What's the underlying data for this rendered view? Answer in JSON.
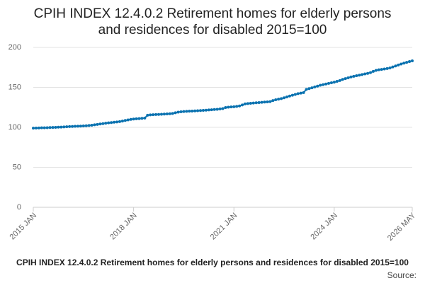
{
  "chart_data": {
    "type": "line",
    "title": [
      "CPIH INDEX 12.4.0.2 Retirement homes for elderly persons",
      "and residences for disabled 2015=100"
    ],
    "caption": "CPIH INDEX 12.4.0.2 Retirement homes for elderly persons and residences for disabled 2015=100",
    "source": "Source:",
    "categories": [
      "2015 JAN",
      null,
      null,
      null,
      null,
      null,
      null,
      null,
      null,
      null,
      null,
      null,
      null,
      null,
      null,
      null,
      null,
      null,
      null,
      null,
      null,
      null,
      null,
      null,
      null,
      null,
      null,
      null,
      null,
      null,
      null,
      null,
      null,
      null,
      null,
      null,
      "2018 JAN",
      null,
      null,
      null,
      null,
      null,
      null,
      null,
      null,
      null,
      null,
      null,
      null,
      null,
      null,
      null,
      null,
      null,
      null,
      null,
      null,
      null,
      null,
      null,
      null,
      null,
      null,
      null,
      null,
      null,
      null,
      null,
      null,
      null,
      null,
      null,
      "2021 JAN",
      null,
      null,
      null,
      null,
      null,
      null,
      null,
      null,
      null,
      null,
      null,
      null,
      null,
      null,
      null,
      null,
      null,
      null,
      null,
      null,
      null,
      null,
      null,
      null,
      null,
      null,
      null,
      null,
      null,
      null,
      null,
      null,
      null,
      null,
      null,
      "2024 JAN",
      null,
      null,
      null,
      null,
      null,
      null,
      null,
      null,
      null,
      null,
      null,
      null,
      null,
      null,
      null,
      null,
      null,
      null,
      null,
      null,
      null,
      null,
      null,
      null,
      null,
      null,
      null,
      "2026 MAY"
    ],
    "series": [
      {
        "name": "CPIH INDEX 12.4.0.2",
        "color": "#0a72b0",
        "values": [
          99,
          99.1,
          99.2,
          99.4,
          99.5,
          99.6,
          99.8,
          99.9,
          100,
          100.2,
          100.3,
          100.5,
          100.8,
          101,
          101.1,
          101.3,
          101.4,
          101.6,
          101.8,
          102,
          102.3,
          102.7,
          103.2,
          103.7,
          104.2,
          104.7,
          105.2,
          105.6,
          106,
          106.4,
          106.8,
          107.2,
          107.8,
          108.6,
          109.3,
          110,
          110.4,
          110.7,
          111,
          111.3,
          111.6,
          115.2,
          115.6,
          115.8,
          116,
          116.2,
          116.4,
          116.6,
          116.8,
          117,
          117.4,
          118.2,
          119,
          119.5,
          119.8,
          120,
          120.2,
          120.4,
          120.6,
          120.8,
          121,
          121.2,
          121.5,
          121.8,
          122,
          122.3,
          122.6,
          123,
          123.5,
          124.8,
          125.2,
          125.5,
          125.8,
          126.2,
          126.8,
          128,
          129.3,
          129.8,
          130.1,
          130.4,
          130.7,
          131,
          131.3,
          131.6,
          131.9,
          132.2,
          133.5,
          134.5,
          135.3,
          136,
          137,
          138,
          139.2,
          140.2,
          141.2,
          142.2,
          142.8,
          143.5,
          147.5,
          148.5,
          149.5,
          150.6,
          151.6,
          152.6,
          153.4,
          154.2,
          155,
          155.8,
          156.5,
          157.5,
          158.5,
          160,
          161,
          162,
          163,
          163.8,
          164.6,
          165.3,
          166,
          166.8,
          167.5,
          168.5,
          170,
          171.2,
          172,
          172.5,
          173,
          173.6,
          174.3,
          175.5,
          176.8,
          178,
          179.2,
          180.3,
          181.3,
          182.3,
          183.2
        ]
      }
    ],
    "ylim": [
      0,
      200
    ],
    "yticks": [
      0,
      50,
      100,
      150,
      200
    ],
    "grid": true
  }
}
